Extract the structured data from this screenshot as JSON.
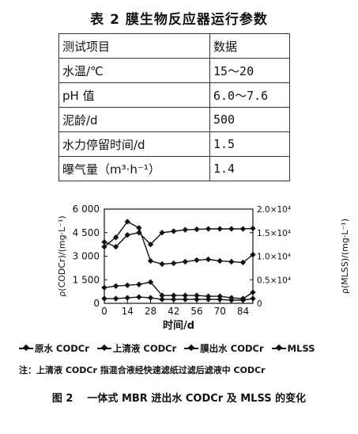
{
  "table": {
    "title": "表 2  膜生物反应器运行参数",
    "header": [
      "测试项目",
      "数据"
    ],
    "rows": [
      [
        "水温/℃",
        "15～20"
      ],
      [
        "pH 值",
        "6.0～7.6"
      ],
      [
        "泥龄/d",
        "500"
      ],
      [
        "水力停留时间/d",
        "1.5"
      ],
      [
        "曝气量（m³·h⁻¹）",
        "1.4"
      ]
    ]
  },
  "chart_data": {
    "type": "line",
    "xlabel": "时间/d",
    "ylabel": "ρ(CODCr)/(mg·L⁻¹)",
    "y2label": "ρ(MLSS)/(mg·L⁻¹)",
    "xlim": [
      0,
      90
    ],
    "ylim": [
      0,
      6000
    ],
    "y2lim": [
      0,
      20000
    ],
    "x_ticks": [
      "0",
      "14",
      "28",
      "42",
      "56",
      "70",
      "84"
    ],
    "y_ticks": [
      "0",
      "1 500",
      "3 000",
      "4 500",
      "6 000"
    ],
    "y2_ticks": [
      "0",
      "0.5×10⁴",
      "1.0×10⁴",
      "1.5×10⁴",
      "2.0×10⁴"
    ],
    "series": [
      {
        "name": "原水 CODCr",
        "axis": "left",
        "x": [
          0,
          7,
          14,
          21,
          28,
          35,
          42,
          49,
          56,
          63,
          70,
          77,
          84,
          90
        ],
        "y": [
          3600,
          4200,
          5200,
          4800,
          2700,
          2500,
          2550,
          2650,
          2750,
          2800,
          2700,
          2650,
          2600,
          3100
        ]
      },
      {
        "name": "上清液 CODCr",
        "axis": "left",
        "x": [
          0,
          7,
          14,
          21,
          28,
          35,
          42,
          49,
          56,
          63,
          70,
          77,
          84,
          90
        ],
        "y": [
          1000,
          1100,
          1150,
          1200,
          1350,
          500,
          500,
          500,
          500,
          450,
          450,
          350,
          300,
          700
        ]
      },
      {
        "name": "膜出水 CODCr",
        "axis": "left",
        "x": [
          0,
          7,
          14,
          21,
          28,
          35,
          42,
          49,
          56,
          63,
          70,
          77,
          84,
          90
        ],
        "y": [
          300,
          300,
          350,
          400,
          350,
          250,
          250,
          250,
          250,
          250,
          250,
          200,
          200,
          300
        ]
      },
      {
        "name": "MLSS",
        "axis": "right",
        "x": [
          0,
          7,
          14,
          21,
          28,
          35,
          42,
          49,
          56,
          63,
          70,
          77,
          84,
          90
        ],
        "y": [
          13000,
          12000,
          14500,
          15000,
          12500,
          15000,
          15300,
          15600,
          15700,
          15800,
          15800,
          15800,
          15800,
          15900
        ]
      }
    ]
  },
  "legend": [
    {
      "label": "原水 CODCr"
    },
    {
      "label": "上清液 CODCr"
    },
    {
      "label": "膜出水 CODCr"
    },
    {
      "label": "MLSS"
    }
  ],
  "note": "注：上清液 CODCr 指混合液经快速滤纸过滤后滤液中 CODCr",
  "caption": {
    "num": "图 2",
    "text": "一体式 MBR 进出水 CODCr 及 MLSS 的变化"
  }
}
